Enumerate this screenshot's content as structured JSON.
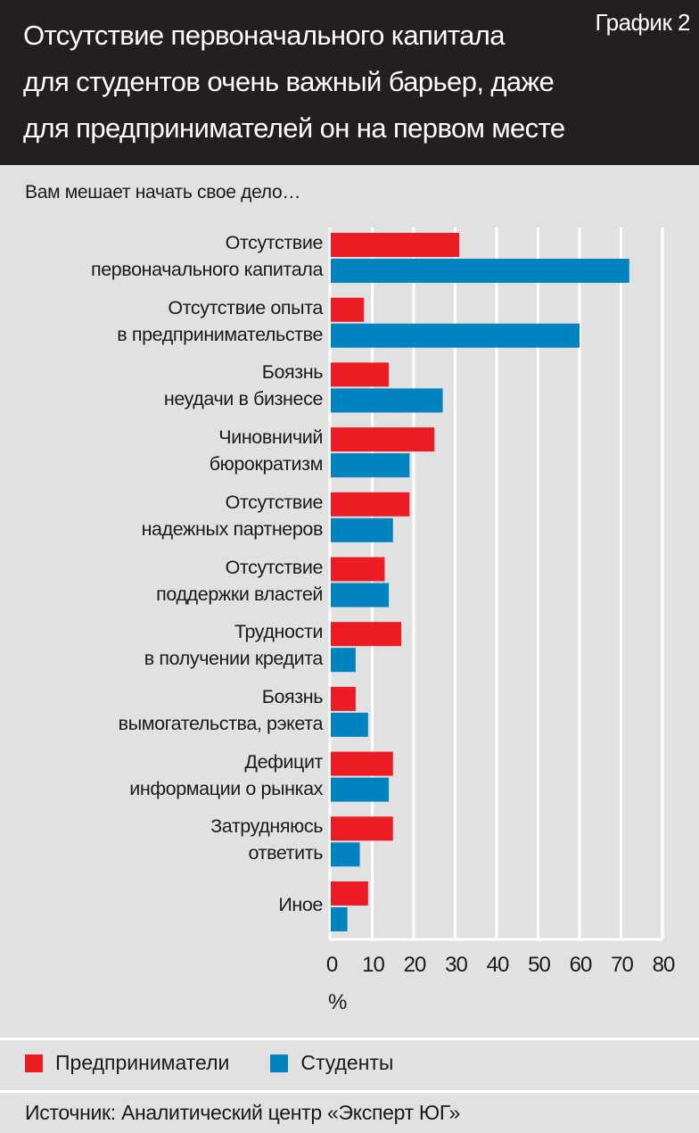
{
  "header": {
    "title_lines": [
      "Отсутствие первоначального капитала",
      "для студентов очень важный барьер, даже",
      "для предпринимателей он на первом месте"
    ],
    "chart_label": "График 2"
  },
  "chart_data": {
    "type": "bar",
    "orientation": "horizontal",
    "subtitle": "Вам мешает начать свое дело…",
    "categories": [
      "Отсутствие\nпервоначального капитала",
      "Отсутствие опыта\nв предпринимательстве",
      "Боязнь\nнеудачи в бизнесе",
      "Чиновничий\nбюрократизм",
      "Отсутствие\nнадежных партнеров",
      "Отсутствие\nподдержки властей",
      "Трудности\nв получении кредита",
      "Боязнь\nвымогательства, рэкета",
      "Дефицит\nинформации о рынках",
      "Затрудняюсь\nответить",
      "Иное"
    ],
    "series": [
      {
        "name": "Предприниматели",
        "color": "#ed1c24",
        "values": [
          31,
          8,
          14,
          25,
          19,
          13,
          17,
          6,
          15,
          15,
          9
        ]
      },
      {
        "name": "Студенты",
        "color": "#0084bf",
        "values": [
          72,
          60,
          27,
          19,
          15,
          14,
          6,
          9,
          14,
          7,
          4
        ]
      }
    ],
    "xlim": [
      0,
      80
    ],
    "xticks": [
      "0",
      "10",
      "20",
      "30",
      "40",
      "50",
      "60",
      "70",
      "80"
    ],
    "xlabel": "%",
    "grid": true,
    "legend": "bottom-left"
  },
  "source": "Источник: Аналитический центр «Эксперт ЮГ»"
}
